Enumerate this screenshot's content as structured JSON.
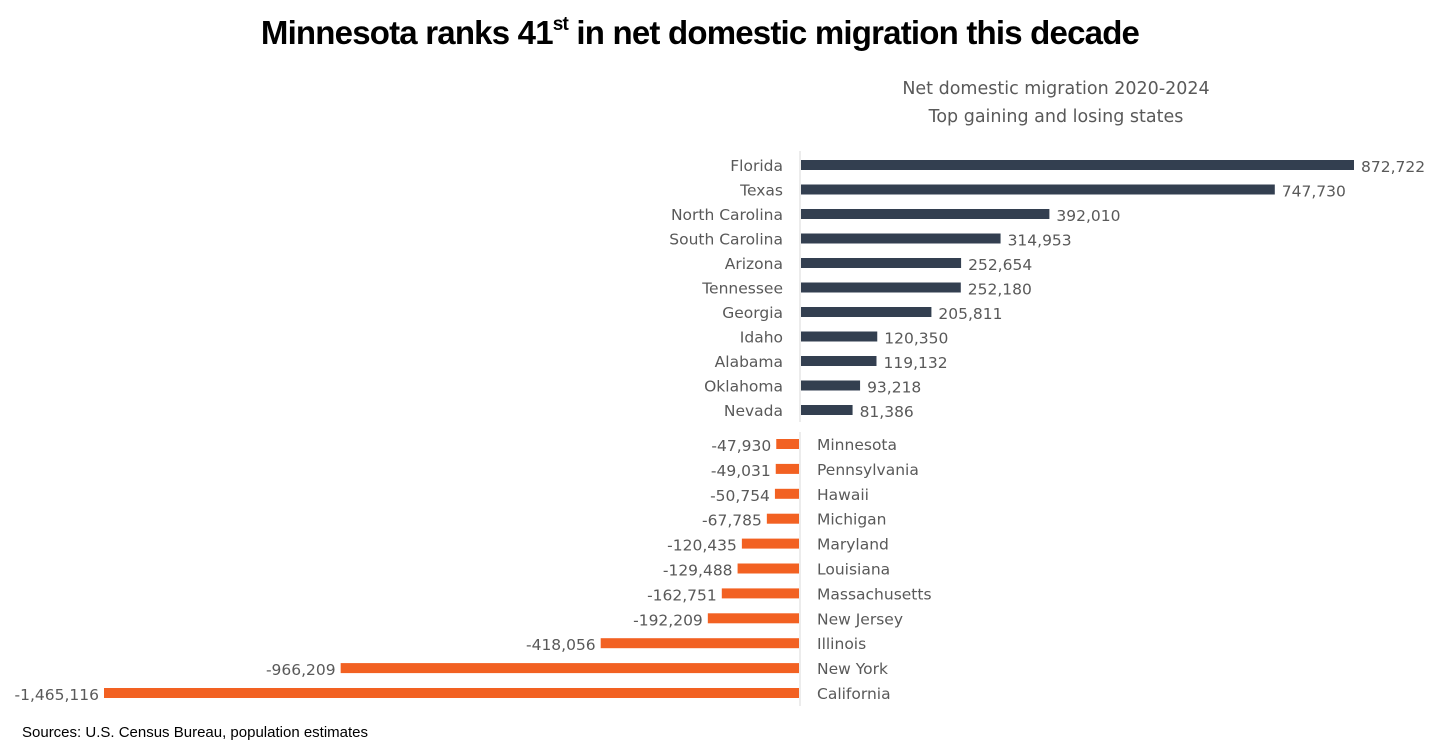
{
  "title": {
    "main_before": "Minnesota ranks 41",
    "superscript": "st",
    "main_after": " in net domestic migration this decade"
  },
  "source": "Sources: U.S. Census Bureau, population estimates",
  "chart_data": [
    {
      "type": "bar",
      "orientation": "horizontal",
      "title": "Net domestic migration 2020-2024",
      "subtitle": "Top gaining and losing states",
      "series_name": "Top gaining states",
      "color": "#333f50",
      "categories": [
        "Florida",
        "Texas",
        "North Carolina",
        "South Carolina",
        "Arizona",
        "Tennessee",
        "Georgia",
        "Idaho",
        "Alabama",
        "Oklahoma",
        "Nevada"
      ],
      "values": [
        872722,
        747730,
        392010,
        314953,
        252654,
        252180,
        205811,
        120350,
        119132,
        93218,
        81386
      ],
      "labels": [
        "872,722",
        "747,730",
        "392,010",
        "314,953",
        "252,654",
        "252,180",
        "205,811",
        "120,350",
        "119,132",
        "93,218",
        "81,386"
      ],
      "xlim": [
        0,
        872722
      ],
      "grid": false,
      "legend": "none"
    },
    {
      "type": "bar",
      "orientation": "horizontal",
      "series_name": "Top losing states",
      "color": "#f26122",
      "categories": [
        "Minnesota",
        "Pennsylvania",
        "Hawaii",
        "Michigan",
        "Maryland",
        "Louisiana",
        "Massachusetts",
        "New Jersey",
        "Illinois",
        "New York",
        "California"
      ],
      "values": [
        -47930,
        -49031,
        -50754,
        -67785,
        -120435,
        -129488,
        -162751,
        -192209,
        -418056,
        -966209,
        -1465116
      ],
      "labels": [
        "-47,930",
        "-49,031",
        "-50,754",
        "-67,785",
        "-120,435",
        "-129,488",
        "-162,751",
        "-192,209",
        "-418,056",
        "-966,209",
        "-1,465,116"
      ],
      "xlim": [
        -1465116,
        0
      ],
      "grid": false,
      "legend": "none"
    }
  ]
}
